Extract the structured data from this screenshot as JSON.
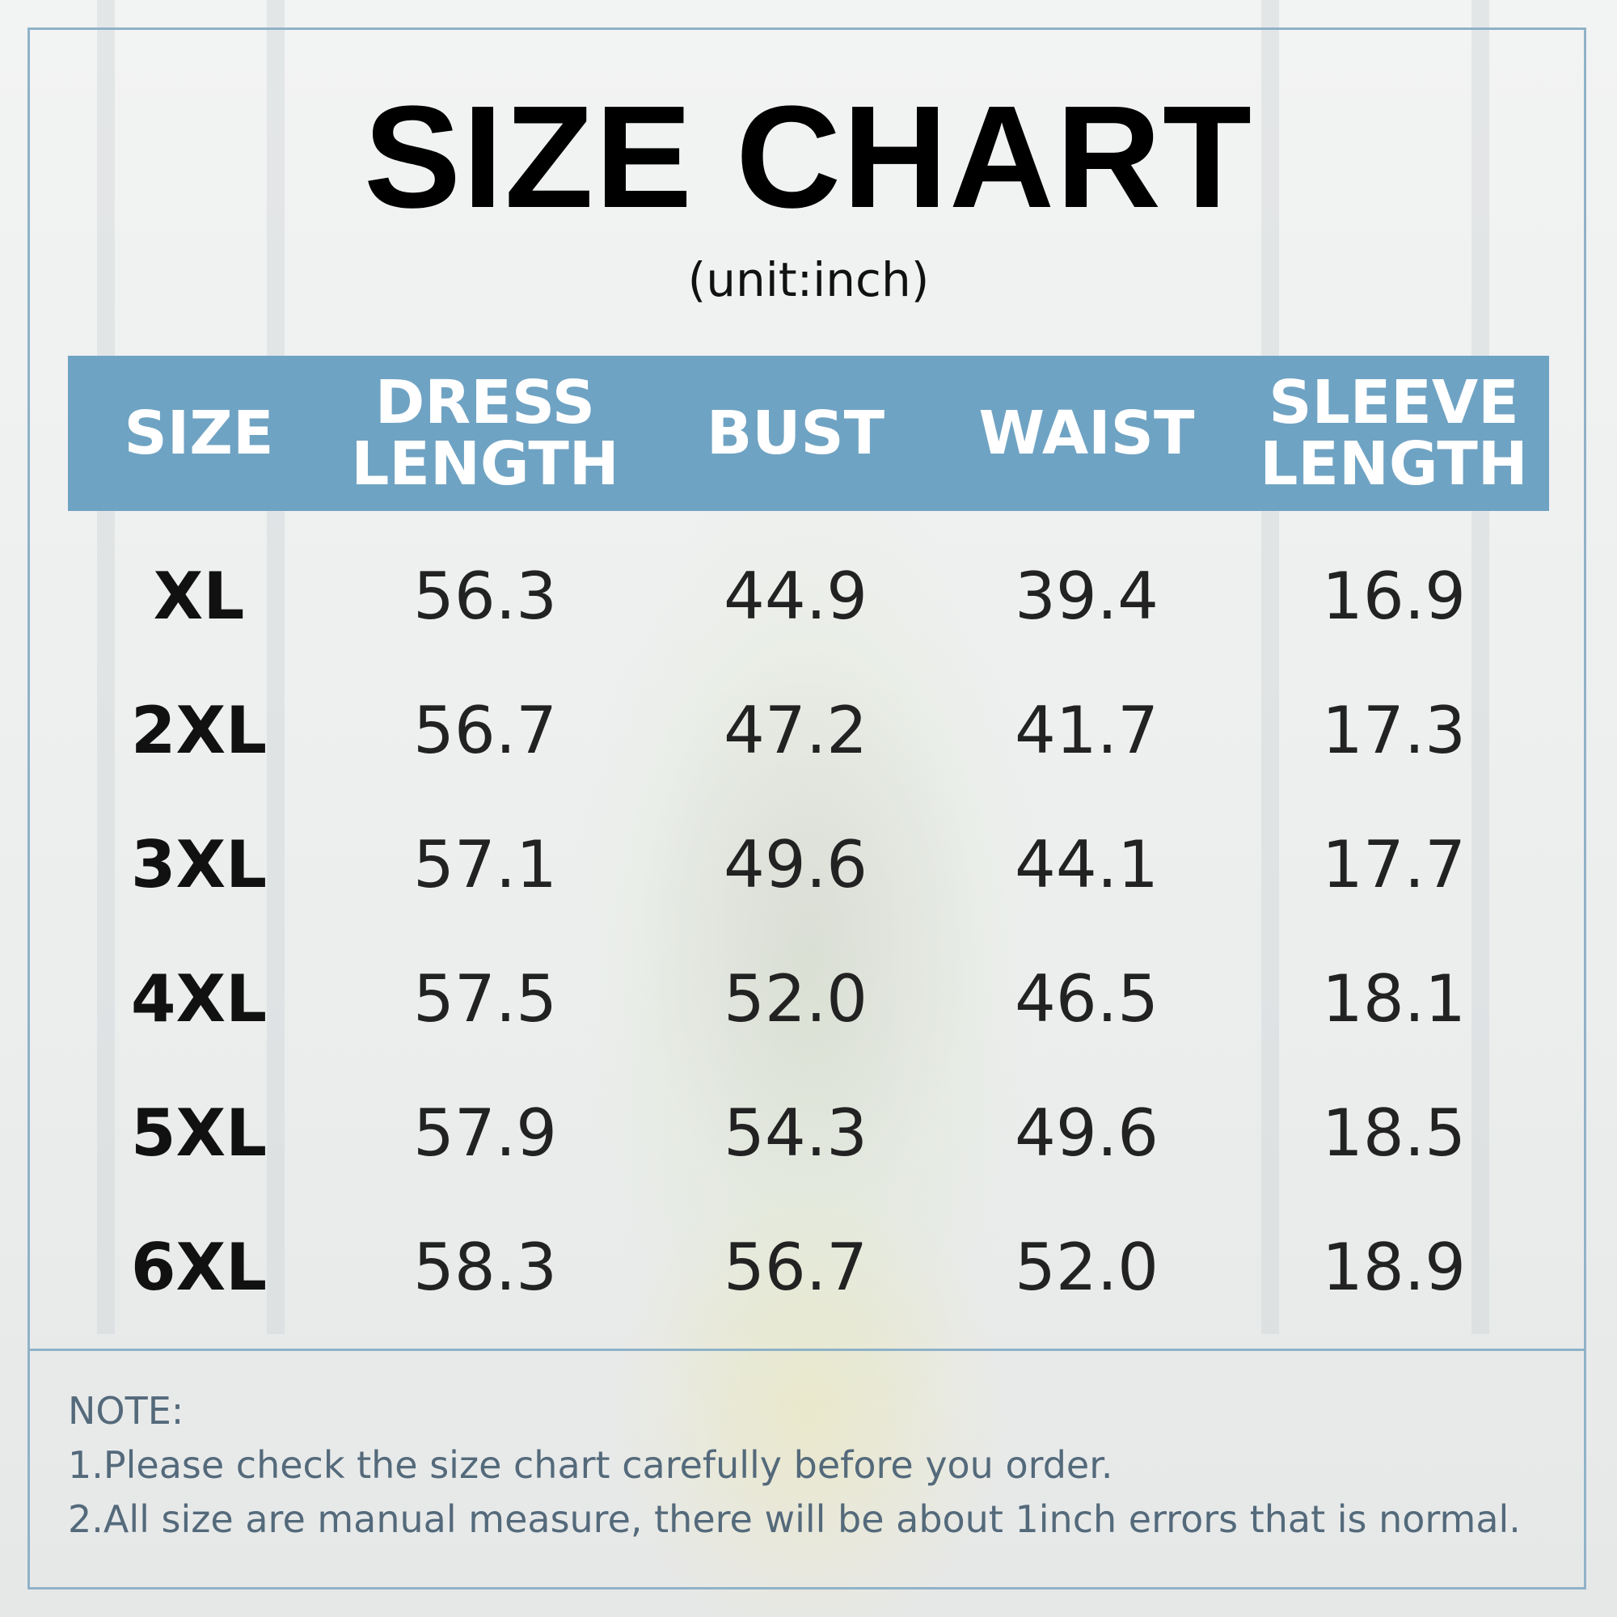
{
  "chart_data": {
    "type": "table",
    "title": "SIZE CHART",
    "subtitle": "(unit:inch)",
    "columns": [
      "SIZE",
      "DRESS\nLENGTH",
      "BUST",
      "WAIST",
      "SLEEVE\nLENGTH"
    ],
    "rows": [
      [
        "XL",
        "56.3",
        "44.9",
        "39.4",
        "16.9"
      ],
      [
        "2XL",
        "56.7",
        "47.2",
        "41.7",
        "17.3"
      ],
      [
        "3XL",
        "57.1",
        "49.6",
        "44.1",
        "17.7"
      ],
      [
        "4XL",
        "57.5",
        "52.0",
        "46.5",
        "18.1"
      ],
      [
        "5XL",
        "57.9",
        "54.3",
        "49.6",
        "18.5"
      ],
      [
        "6XL",
        "58.3",
        "56.7",
        "52.0",
        "18.9"
      ]
    ]
  },
  "notes": {
    "heading": "NOTE:",
    "line1": "1.Please check the size chart carefully before you order.",
    "line2": "2.All size are manual measure, there will be about 1inch errors that is normal."
  },
  "colors": {
    "header_bg": "#6fa3c3",
    "frame": "#8fb2c8",
    "note_text": "#546a7b"
  }
}
